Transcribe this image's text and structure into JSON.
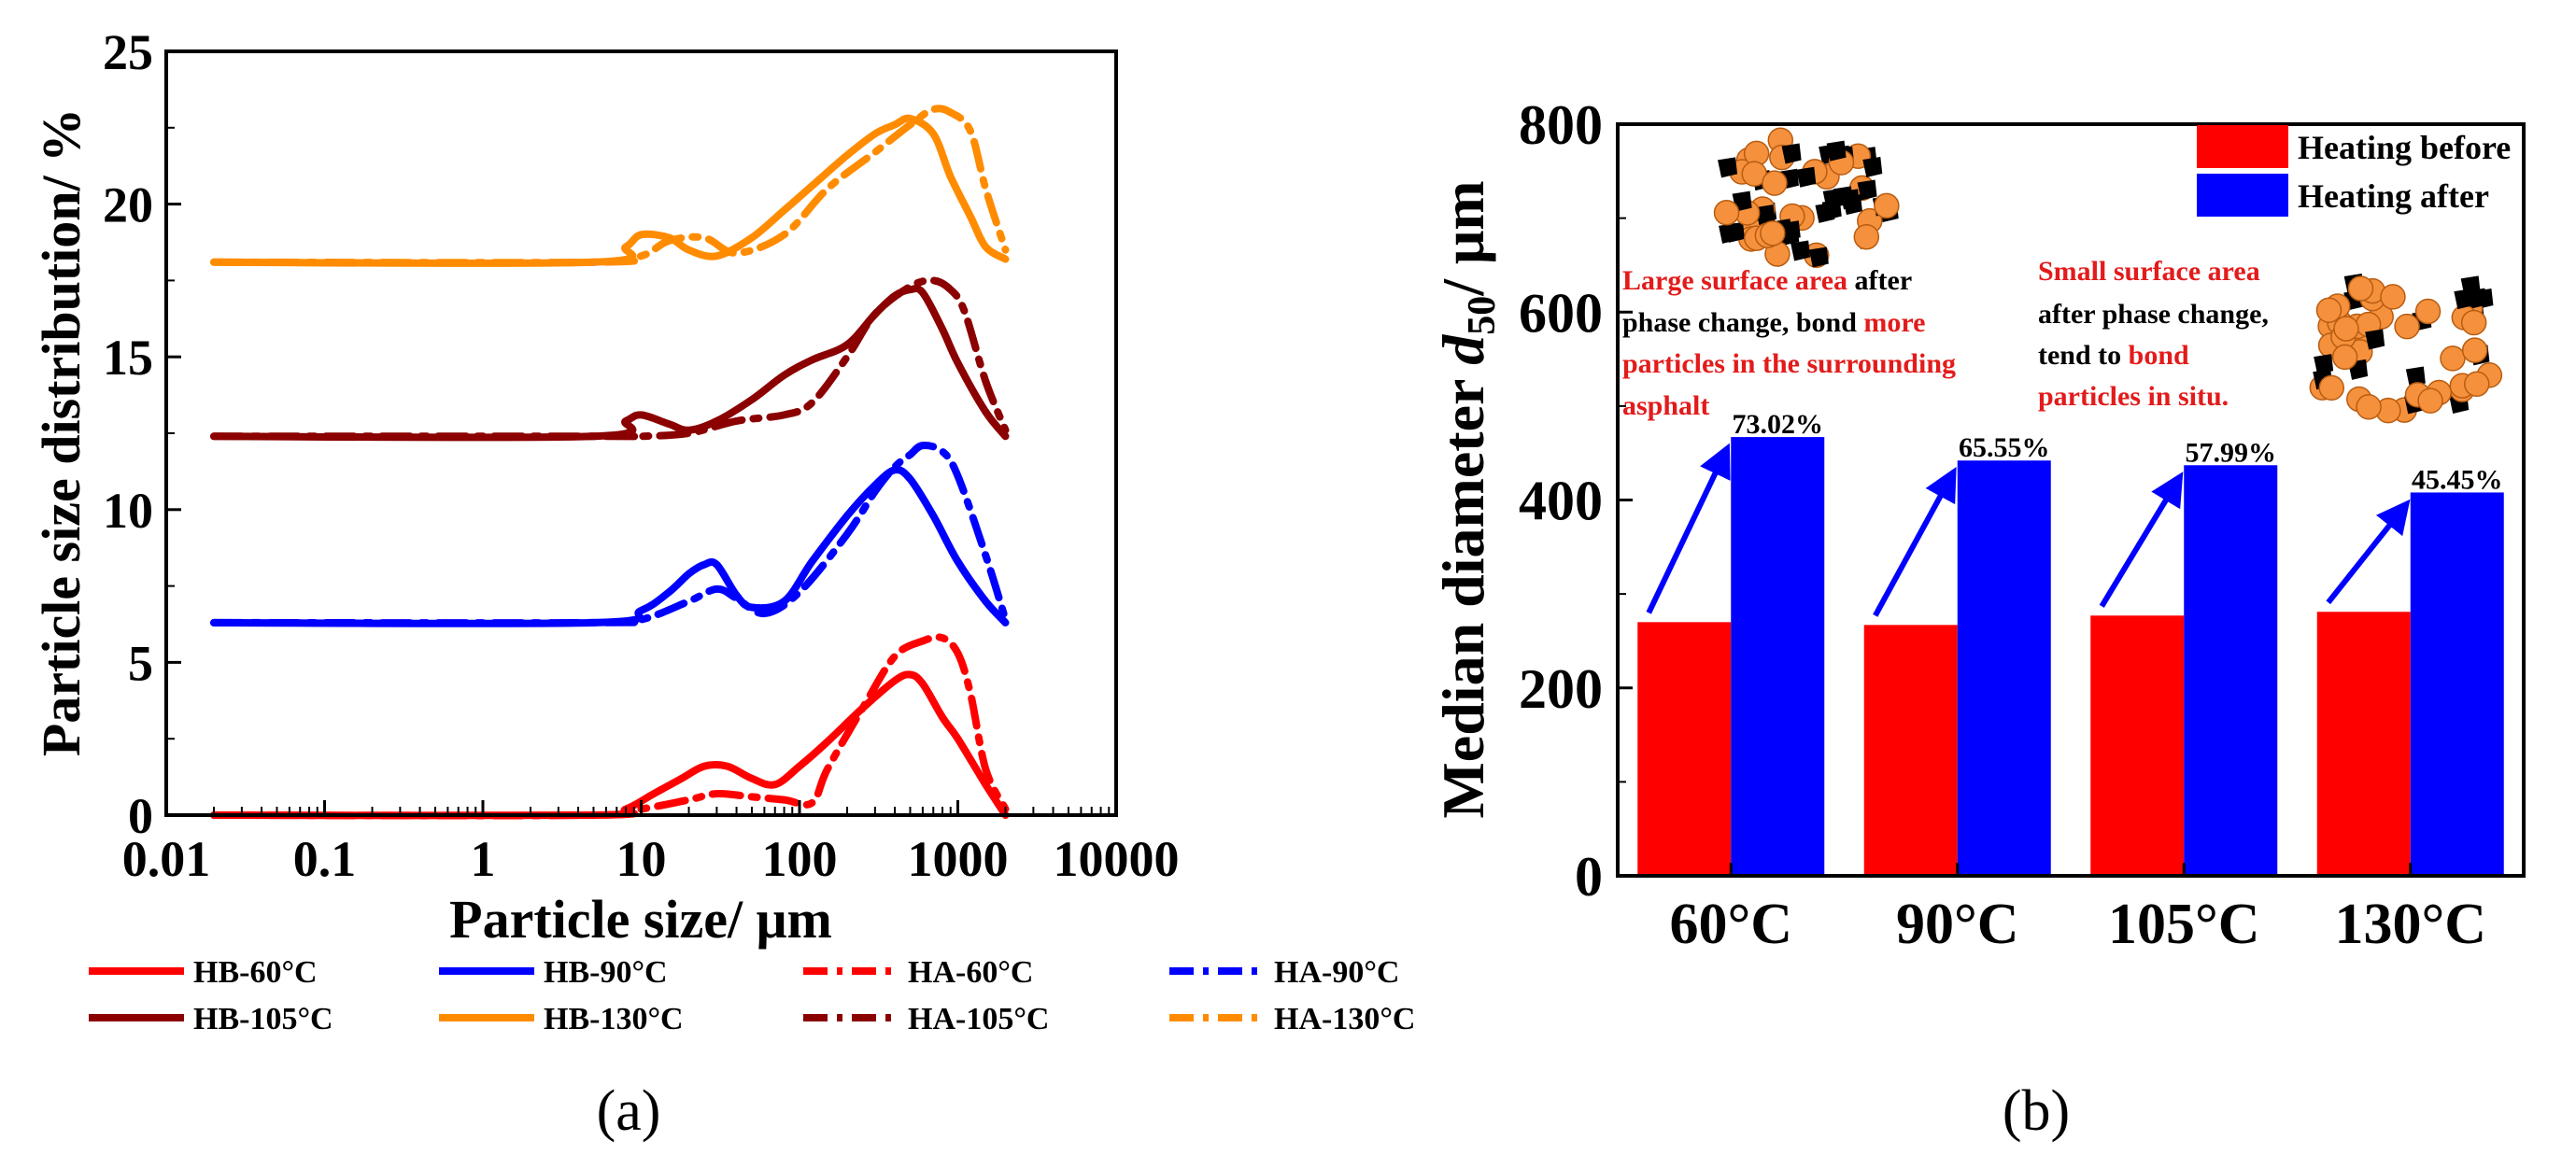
{
  "colors": {
    "red": "#ff0000",
    "blue": "#0000ff",
    "darkred": "#8b0000",
    "orange": "#ff8c00",
    "particle": "#f5913d",
    "black": "#000000",
    "annot_red": "#e31b1b"
  },
  "chart_data": [
    {
      "panel": "(a)",
      "type": "line",
      "xscale": "log",
      "xlabel": "Particle size/ μm",
      "ylabel": "Particle size distribution/ %",
      "xlim": [
        0.01,
        10000
      ],
      "ylim": [
        0,
        25
      ],
      "xticks": [
        "0.01",
        "0.1",
        "1",
        "10",
        "100",
        "1000",
        "10000"
      ],
      "yticks": [
        "0",
        "5",
        "10",
        "15",
        "20",
        "25"
      ],
      "series": [
        {
          "name": "HB-60°C",
          "color": "#ff0000",
          "dash": "solid",
          "points": [
            [
              0.02,
              0
            ],
            [
              5,
              0
            ],
            [
              8,
              0.2
            ],
            [
              12,
              0.7
            ],
            [
              18,
              1.2
            ],
            [
              25,
              1.6
            ],
            [
              35,
              1.6
            ],
            [
              50,
              1.2
            ],
            [
              70,
              1.0
            ],
            [
              100,
              1.6
            ],
            [
              150,
              2.4
            ],
            [
              250,
              3.5
            ],
            [
              400,
              4.4
            ],
            [
              500,
              4.6
            ],
            [
              600,
              4.3
            ],
            [
              800,
              3.2
            ],
            [
              1000,
              2.5
            ],
            [
              1500,
              1.0
            ],
            [
              2000,
              0
            ]
          ]
        },
        {
          "name": "HB-90°C",
          "color": "#0000ff",
          "dash": "solid",
          "points": [
            [
              0.02,
              6.3
            ],
            [
              5,
              6.3
            ],
            [
              10,
              6.7
            ],
            [
              15,
              7.3
            ],
            [
              20,
              7.9
            ],
            [
              25,
              8.2
            ],
            [
              30,
              8.2
            ],
            [
              40,
              7.2
            ],
            [
              50,
              6.8
            ],
            [
              80,
              7.0
            ],
            [
              120,
              8.3
            ],
            [
              200,
              9.8
            ],
            [
              300,
              10.8
            ],
            [
              400,
              11.3
            ],
            [
              500,
              11.0
            ],
            [
              700,
              9.8
            ],
            [
              1000,
              8.3
            ],
            [
              1500,
              7.0
            ],
            [
              2000,
              6.3
            ]
          ]
        },
        {
          "name": "HB-105°C",
          "color": "#8b0000",
          "dash": "solid",
          "points": [
            [
              0.02,
              12.4
            ],
            [
              5,
              12.4
            ],
            [
              8,
              12.9
            ],
            [
              10,
              13.1
            ],
            [
              15,
              12.8
            ],
            [
              20,
              12.6
            ],
            [
              30,
              12.9
            ],
            [
              50,
              13.6
            ],
            [
              80,
              14.4
            ],
            [
              120,
              14.9
            ],
            [
              200,
              15.4
            ],
            [
              300,
              16.4
            ],
            [
              400,
              17.0
            ],
            [
              500,
              17.2
            ],
            [
              600,
              17.1
            ],
            [
              800,
              15.9
            ],
            [
              1000,
              14.8
            ],
            [
              1500,
              13.2
            ],
            [
              2000,
              12.4
            ]
          ]
        },
        {
          "name": "HB-130°C",
          "color": "#ff8c00",
          "dash": "solid",
          "points": [
            [
              0.02,
              18.1
            ],
            [
              5,
              18.1
            ],
            [
              8,
              18.6
            ],
            [
              10,
              19.0
            ],
            [
              15,
              18.9
            ],
            [
              20,
              18.5
            ],
            [
              30,
              18.3
            ],
            [
              50,
              18.9
            ],
            [
              80,
              19.8
            ],
            [
              120,
              20.6
            ],
            [
              200,
              21.6
            ],
            [
              300,
              22.3
            ],
            [
              400,
              22.6
            ],
            [
              500,
              22.8
            ],
            [
              700,
              22.3
            ],
            [
              900,
              20.9
            ],
            [
              1200,
              19.6
            ],
            [
              1500,
              18.6
            ],
            [
              2000,
              18.2
            ]
          ]
        },
        {
          "name": "HA-60°C",
          "color": "#ff0000",
          "dash": "dashdot",
          "points": [
            [
              0.02,
              0
            ],
            [
              5,
              0
            ],
            [
              10,
              0.2
            ],
            [
              20,
              0.5
            ],
            [
              30,
              0.7
            ],
            [
              50,
              0.6
            ],
            [
              80,
              0.5
            ],
            [
              120,
              0.4
            ],
            [
              150,
              1.5
            ],
            [
              250,
              3.5
            ],
            [
              400,
              5.2
            ],
            [
              600,
              5.7
            ],
            [
              800,
              5.8
            ],
            [
              1000,
              5.3
            ],
            [
              1200,
              4.0
            ],
            [
              1500,
              1.5
            ],
            [
              2000,
              0.2
            ]
          ]
        },
        {
          "name": "HA-90°C",
          "color": "#0000ff",
          "dash": "dashdot",
          "points": [
            [
              0.02,
              6.3
            ],
            [
              5,
              6.3
            ],
            [
              10,
              6.4
            ],
            [
              20,
              7.0
            ],
            [
              30,
              7.4
            ],
            [
              40,
              7.1
            ],
            [
              60,
              6.6
            ],
            [
              100,
              7.3
            ],
            [
              200,
              9.2
            ],
            [
              300,
              10.6
            ],
            [
              400,
              11.4
            ],
            [
              500,
              11.8
            ],
            [
              600,
              12.1
            ],
            [
              800,
              11.9
            ],
            [
              1000,
              11.1
            ],
            [
              1500,
              8.5
            ],
            [
              2000,
              6.4
            ]
          ]
        },
        {
          "name": "HA-105°C",
          "color": "#8b0000",
          "dash": "dashdot",
          "points": [
            [
              0.02,
              12.4
            ],
            [
              5,
              12.4
            ],
            [
              10,
              12.4
            ],
            [
              20,
              12.5
            ],
            [
              40,
              12.9
            ],
            [
              80,
              13.1
            ],
            [
              120,
              13.5
            ],
            [
              200,
              15.0
            ],
            [
              300,
              16.4
            ],
            [
              500,
              17.3
            ],
            [
              700,
              17.5
            ],
            [
              900,
              17.2
            ],
            [
              1100,
              16.5
            ],
            [
              1500,
              14.2
            ],
            [
              2000,
              12.6
            ]
          ]
        },
        {
          "name": "HA-130°C",
          "color": "#ff8c00",
          "dash": "dashdot",
          "points": [
            [
              0.02,
              18.1
            ],
            [
              5,
              18.1
            ],
            [
              10,
              18.3
            ],
            [
              15,
              18.8
            ],
            [
              25,
              18.9
            ],
            [
              40,
              18.4
            ],
            [
              80,
              19.0
            ],
            [
              150,
              20.5
            ],
            [
              300,
              21.7
            ],
            [
              500,
              22.6
            ],
            [
              700,
              23.1
            ],
            [
              900,
              23.0
            ],
            [
              1200,
              22.4
            ],
            [
              1500,
              20.5
            ],
            [
              2000,
              18.5
            ]
          ]
        }
      ],
      "legend": [
        "HB-60°C",
        "HB-90°C",
        "HA-60°C",
        "HA-90°C",
        "HB-105°C",
        "HB-130°C",
        "HA-105°C",
        "HA-130°C"
      ]
    },
    {
      "panel": "(b)",
      "type": "bar",
      "ylabel_pre": "Median diameter ",
      "ylabel_var": "d",
      "ylabel_sub": "50",
      "ylabel_post": "/ μm",
      "ylim": [
        0,
        800
      ],
      "yticks": [
        "0",
        "200",
        "400",
        "600",
        "800"
      ],
      "categories": [
        "60°C",
        "90°C",
        "105°C",
        "130°C"
      ],
      "series": [
        {
          "name": "Heating before",
          "color": "#ff0000",
          "values": [
            270,
            267,
            277,
            281
          ]
        },
        {
          "name": "Heating after",
          "color": "#0000ff",
          "values": [
            467,
            442,
            437,
            408
          ]
        }
      ],
      "increase_labels": [
        "73.02%",
        "65.55%",
        "57.99%",
        "45.45%"
      ],
      "legend_position": "top-right"
    }
  ],
  "panel_labels": {
    "a": "(a)",
    "b": "(b)"
  },
  "annotations": {
    "left": {
      "red1": "Large surface area",
      "black1": " after",
      "black2": "phase change, bond ",
      "red2": "more",
      "red3": "particles in the surrounding",
      "red4": "asphalt"
    },
    "right": {
      "red1": "Small surface area",
      "black1": "after phase change,",
      "black2": "tend to ",
      "red2": "bond",
      "red3": "particles in situ."
    }
  }
}
